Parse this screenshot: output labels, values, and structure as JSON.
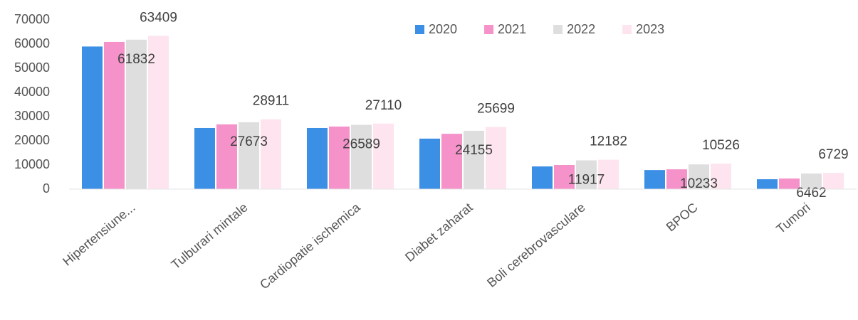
{
  "chart_data": {
    "type": "bar",
    "categories": [
      "Hipertensiune...",
      "Tulburari mintale",
      "Cardiopatie ischemica",
      "Diabet zaharat",
      "Boli cerebrovasculare",
      "BPOC",
      "Tumori"
    ],
    "series": [
      {
        "name": "2020",
        "color": "#3b8fe4",
        "values": [
          59000,
          25300,
          25300,
          20900,
          9400,
          7900,
          4100
        ]
      },
      {
        "name": "2021",
        "color": "#f592c9",
        "values": [
          60900,
          26800,
          25900,
          22900,
          10000,
          8200,
          4400
        ]
      },
      {
        "name": "2022",
        "color": "#dedede",
        "values": [
          61832,
          27673,
          26589,
          24155,
          11917,
          10233,
          6462
        ],
        "show_labels": true,
        "label_position": "inside_end"
      },
      {
        "name": "2023",
        "color": "#fde4ef",
        "values": [
          63409,
          28911,
          27110,
          25699,
          12182,
          10526,
          6729
        ],
        "show_labels": true,
        "label_position": "outside_end"
      }
    ],
    "ylim": [
      0,
      70000
    ],
    "yticks": [
      0,
      10000,
      20000,
      30000,
      40000,
      50000,
      60000,
      70000
    ],
    "grid": false,
    "legend": "top-right"
  }
}
